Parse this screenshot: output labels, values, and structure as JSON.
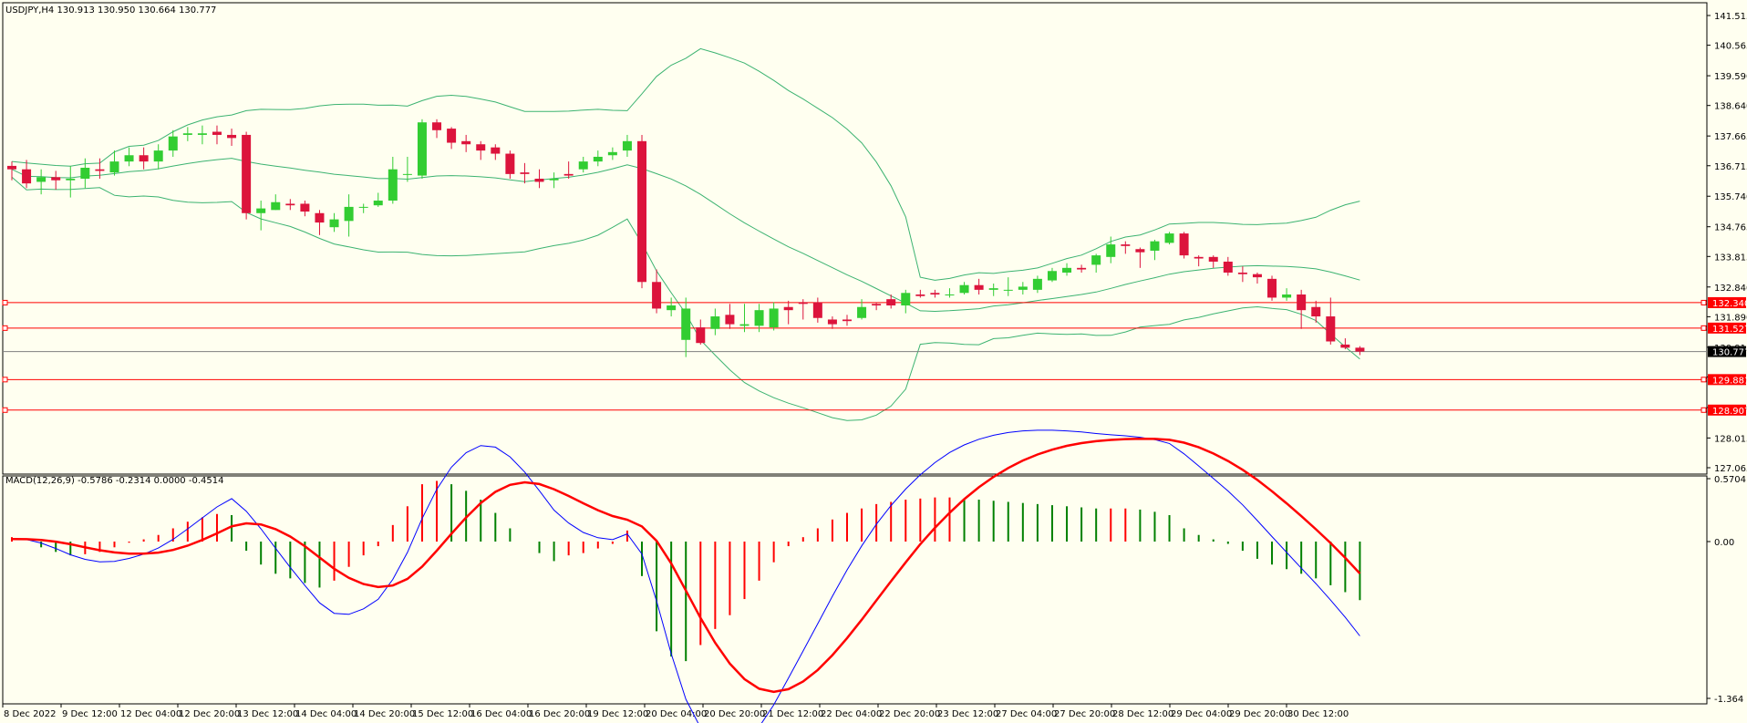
{
  "colors": {
    "background": "#fffff0",
    "bull": "#32cd32",
    "bear": "#dc143c",
    "bands": "#3cb371",
    "levels": "#ff0000",
    "current_badge": "#000000",
    "macd_line": "#0000ff",
    "signal_line": "#ff0000"
  },
  "header": {
    "symbol": "USDJPY,H4",
    "open": "130.913",
    "high": "130.950",
    "low": "130.664",
    "close": "130.777"
  },
  "macd_header": {
    "label": "MACD(12,26,9)",
    "v1": "-0.5786",
    "v2": "-0.2314",
    "v3": "0.0000",
    "v4": "-0.4514"
  },
  "chart_data": [
    {
      "type": "candlestick",
      "y_ticks": [
        "141.515",
        "140.565",
        "139.590",
        "138.640",
        "137.665",
        "136.715",
        "135.740",
        "134.765",
        "133.815",
        "132.840",
        "131.890",
        "130.915",
        "129.965",
        "128.990",
        "128.015",
        "127.065"
      ],
      "ylim": [
        127.065,
        141.515
      ],
      "x_ticks": [
        "8 Dec 2022",
        "9 Dec 12:00",
        "12 Dec 04:00",
        "12 Dec 20:00",
        "13 Dec 12:00",
        "14 Dec 04:00",
        "14 Dec 20:00",
        "15 Dec 12:00",
        "16 Dec 04:00",
        "16 Dec 20:00",
        "19 Dec 12:00",
        "20 Dec 04:00",
        "20 Dec 20:00",
        "21 Dec 12:00",
        "22 Dec 04:00",
        "22 Dec 20:00",
        "23 Dec 12:00",
        "27 Dec 04:00",
        "27 Dec 20:00",
        "28 Dec 12:00",
        "29 Dec 04:00",
        "29 Dec 20:00",
        "30 Dec 12:00"
      ],
      "levels": [
        {
          "label": "132.340",
          "value": 132.34,
          "style": "red"
        },
        {
          "label": "131.527",
          "value": 131.527,
          "style": "red"
        },
        {
          "label": "130.777",
          "value": 130.777,
          "style": "current"
        },
        {
          "label": "129.881",
          "value": 129.881,
          "style": "red"
        },
        {
          "label": "128.907",
          "value": 128.907,
          "style": "red"
        }
      ],
      "candles": [
        [
          136.71,
          136.6,
          136.85,
          136.25
        ],
        [
          136.6,
          136.15,
          136.9,
          136.0
        ],
        [
          136.2,
          136.35,
          136.6,
          135.8
        ],
        [
          136.35,
          136.25,
          136.55,
          135.95
        ],
        [
          136.25,
          136.3,
          136.7,
          135.7
        ],
        [
          136.3,
          136.65,
          136.95,
          136.0
        ],
        [
          136.6,
          136.55,
          136.95,
          136.3
        ],
        [
          136.5,
          136.85,
          137.2,
          136.4
        ],
        [
          136.85,
          137.05,
          137.3,
          136.7
        ],
        [
          137.05,
          136.85,
          137.3,
          136.6
        ],
        [
          136.85,
          137.2,
          137.4,
          136.6
        ],
        [
          137.2,
          137.65,
          137.85,
          137.0
        ],
        [
          137.7,
          137.75,
          137.95,
          137.5
        ],
        [
          137.7,
          137.75,
          138.0,
          137.4
        ],
        [
          137.8,
          137.7,
          138.0,
          137.4
        ],
        [
          137.7,
          137.6,
          137.9,
          137.35
        ],
        [
          137.7,
          135.2,
          137.8,
          135.0
        ],
        [
          135.2,
          135.35,
          135.6,
          134.65
        ],
        [
          135.3,
          135.55,
          135.8,
          135.3
        ],
        [
          135.5,
          135.45,
          135.65,
          135.3
        ],
        [
          135.5,
          135.25,
          135.6,
          135.1
        ],
        [
          135.2,
          134.9,
          135.3,
          134.5
        ],
        [
          134.75,
          135.0,
          135.2,
          134.6
        ],
        [
          134.95,
          135.4,
          135.8,
          134.45
        ],
        [
          135.4,
          135.4,
          135.5,
          135.2
        ],
        [
          135.45,
          135.6,
          135.85,
          135.4
        ],
        [
          135.6,
          136.6,
          137.0,
          135.5
        ],
        [
          136.45,
          136.45,
          137.0,
          136.2
        ],
        [
          136.4,
          138.1,
          138.2,
          136.3
        ],
        [
          138.1,
          137.85,
          138.2,
          137.6
        ],
        [
          137.9,
          137.45,
          137.95,
          137.25
        ],
        [
          137.5,
          137.4,
          137.7,
          137.15
        ],
        [
          137.4,
          137.2,
          137.5,
          136.9
        ],
        [
          137.3,
          137.1,
          137.4,
          136.9
        ],
        [
          137.1,
          136.45,
          137.2,
          136.3
        ],
        [
          136.5,
          136.45,
          136.8,
          136.15
        ],
        [
          136.3,
          136.2,
          136.6,
          136.0
        ],
        [
          136.25,
          136.3,
          136.5,
          136.0
        ],
        [
          136.45,
          136.4,
          136.85,
          136.3
        ],
        [
          136.6,
          136.85,
          137.0,
          136.5
        ],
        [
          136.85,
          137.0,
          137.2,
          136.7
        ],
        [
          137.05,
          137.15,
          137.3,
          136.9
        ],
        [
          137.2,
          137.5,
          137.7,
          137.0
        ],
        [
          137.5,
          133.0,
          137.7,
          132.8
        ],
        [
          133.0,
          132.15,
          133.4,
          132.0
        ],
        [
          132.1,
          132.25,
          132.5,
          131.9
        ],
        [
          131.15,
          132.15,
          132.5,
          130.6
        ],
        [
          131.55,
          131.05,
          131.8,
          131.0
        ],
        [
          131.5,
          131.9,
          132.15,
          131.3
        ],
        [
          131.95,
          131.65,
          132.3,
          131.5
        ],
        [
          131.6,
          131.65,
          132.3,
          131.4
        ],
        [
          131.6,
          132.1,
          132.3,
          131.4
        ],
        [
          131.55,
          132.15,
          132.35,
          131.45
        ],
        [
          132.2,
          132.1,
          132.4,
          131.65
        ],
        [
          132.35,
          132.3,
          132.45,
          131.8
        ],
        [
          132.35,
          131.85,
          132.5,
          131.7
        ],
        [
          131.8,
          131.65,
          131.9,
          131.5
        ],
        [
          131.8,
          131.75,
          131.95,
          131.6
        ],
        [
          131.85,
          132.2,
          132.45,
          131.8
        ],
        [
          132.3,
          132.25,
          132.35,
          132.1
        ],
        [
          132.45,
          132.25,
          132.6,
          132.15
        ],
        [
          132.25,
          132.65,
          132.75,
          132.0
        ],
        [
          132.6,
          132.55,
          132.75,
          132.5
        ],
        [
          132.65,
          132.6,
          132.75,
          132.5
        ],
        [
          132.6,
          132.6,
          132.8,
          132.5
        ],
        [
          132.65,
          132.9,
          133.0,
          132.6
        ],
        [
          132.9,
          132.75,
          133.1,
          132.6
        ],
        [
          132.75,
          132.8,
          132.95,
          132.55
        ],
        [
          132.75,
          132.75,
          133.15,
          132.55
        ],
        [
          132.75,
          132.85,
          133.0,
          132.6
        ],
        [
          132.75,
          133.1,
          133.2,
          132.65
        ],
        [
          133.05,
          133.35,
          133.45,
          133.0
        ],
        [
          133.3,
          133.45,
          133.6,
          133.2
        ],
        [
          133.45,
          133.4,
          133.55,
          133.3
        ],
        [
          133.55,
          133.85,
          133.9,
          133.3
        ],
        [
          133.8,
          134.2,
          134.45,
          133.6
        ],
        [
          134.2,
          134.15,
          134.3,
          133.9
        ],
        [
          134.05,
          133.95,
          134.1,
          133.45
        ],
        [
          134.0,
          134.3,
          134.35,
          133.7
        ],
        [
          134.25,
          134.55,
          134.6,
          134.2
        ],
        [
          134.55,
          133.85,
          134.6,
          133.75
        ],
        [
          133.8,
          133.75,
          133.85,
          133.5
        ],
        [
          133.8,
          133.65,
          133.85,
          133.45
        ],
        [
          133.65,
          133.3,
          133.8,
          133.2
        ],
        [
          133.3,
          133.25,
          133.5,
          133.0
        ],
        [
          133.25,
          133.15,
          133.3,
          132.95
        ],
        [
          133.1,
          132.5,
          133.2,
          132.4
        ],
        [
          132.5,
          132.6,
          132.8,
          132.4
        ],
        [
          132.6,
          132.1,
          132.75,
          131.5
        ],
        [
          132.2,
          131.9,
          132.4,
          131.7
        ],
        [
          131.9,
          131.1,
          132.5,
          131.0
        ],
        [
          131.0,
          130.9,
          131.2,
          130.85
        ],
        [
          130.9,
          130.777,
          130.95,
          130.664
        ]
      ]
    },
    {
      "type": "macd",
      "y_ticks": [
        "0.5704",
        "0.00",
        "-1.364"
      ],
      "ylim": [
        -1.364,
        0.5704
      ],
      "histogram": [
        0.04,
        0.0,
        -0.05,
        -0.09,
        -0.12,
        -0.11,
        -0.09,
        -0.05,
        -0.01,
        0.02,
        0.06,
        0.12,
        0.18,
        0.22,
        0.25,
        0.24,
        -0.08,
        -0.2,
        -0.28,
        -0.32,
        -0.36,
        -0.4,
        -0.34,
        -0.22,
        -0.12,
        -0.04,
        0.15,
        0.32,
        0.52,
        0.55,
        0.52,
        0.46,
        0.38,
        0.26,
        0.12,
        0.0,
        -0.1,
        -0.17,
        -0.12,
        -0.1,
        -0.06,
        -0.02,
        0.1,
        -0.3,
        -0.78,
        -1.0,
        -1.04,
        -0.9,
        -0.76,
        -0.64,
        -0.5,
        -0.34,
        -0.18,
        -0.04,
        0.04,
        0.12,
        0.2,
        0.26,
        0.3,
        0.34,
        0.36,
        0.38,
        0.39,
        0.4,
        0.4,
        0.39,
        0.38,
        0.37,
        0.36,
        0.35,
        0.34,
        0.33,
        0.32,
        0.31,
        0.3,
        0.3,
        0.3,
        0.29,
        0.27,
        0.24,
        0.12,
        0.06,
        0.02,
        -0.02,
        -0.08,
        -0.15,
        -0.2,
        -0.24,
        -0.28,
        -0.32,
        -0.38,
        -0.44,
        -0.51
      ]
    }
  ]
}
